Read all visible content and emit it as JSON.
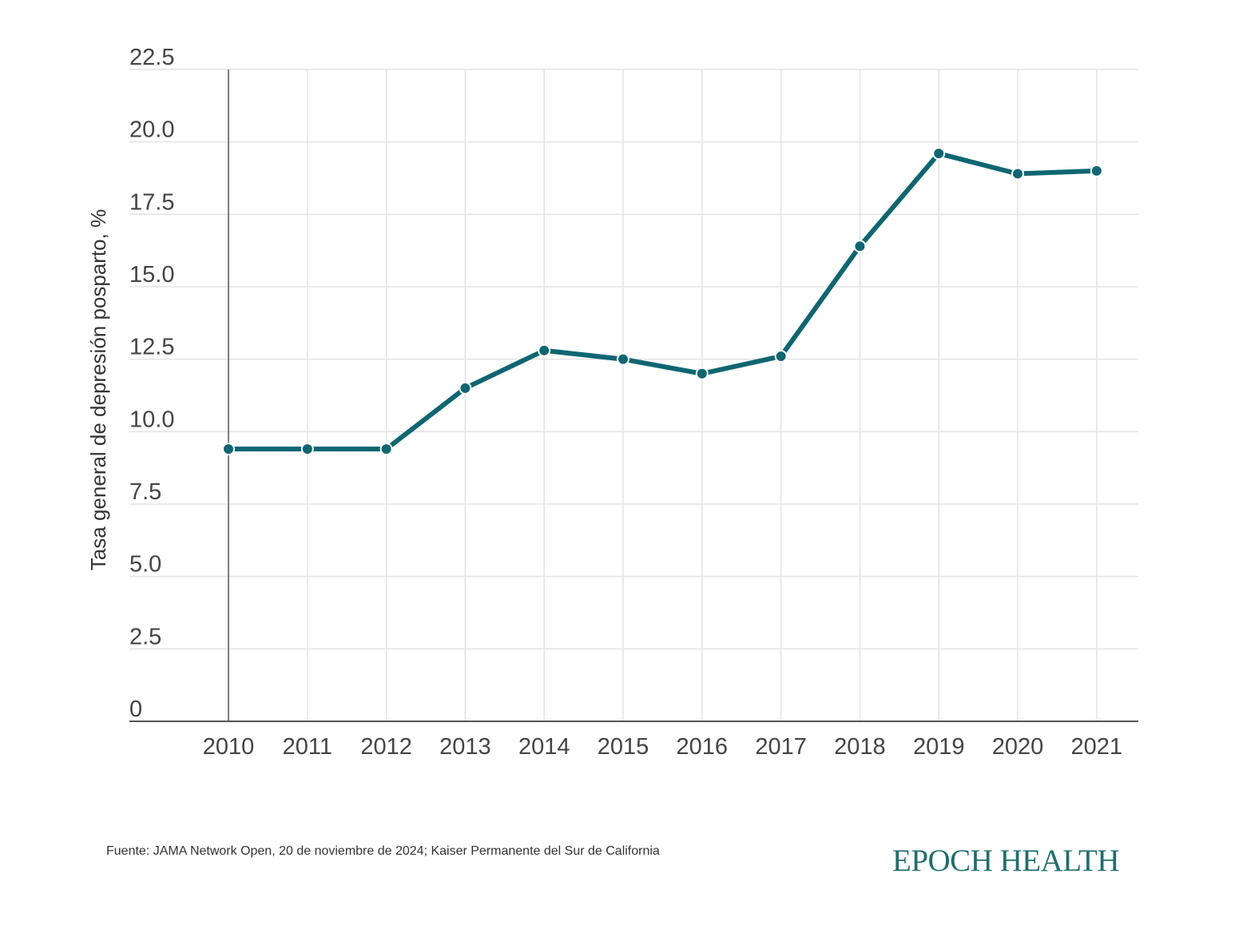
{
  "chart_data": {
    "type": "line",
    "x": [
      "2010",
      "2011",
      "2012",
      "2013",
      "2014",
      "2015",
      "2016",
      "2017",
      "2018",
      "2019",
      "2020",
      "2021"
    ],
    "series": [
      {
        "values": [
          9.4,
          9.4,
          9.4,
          11.5,
          12.8,
          12.5,
          12.0,
          12.6,
          16.4,
          19.6,
          18.9,
          19.0
        ]
      }
    ],
    "ylabel": "Tasa general de depresión posparto, %",
    "xlabel": "",
    "ylim": [
      0,
      22.5
    ],
    "yticks": [
      "0",
      "2.5",
      "5.0",
      "7.5",
      "10.0",
      "12.5",
      "15.0",
      "17.5",
      "20.0",
      "22.5"
    ],
    "grid": true
  },
  "footer": {
    "source": "Fuente: JAMA Network Open, 20 de noviembre de 2024; Kaiser Permanente del Sur de California",
    "brand": "EPOCH HEALTH"
  },
  "colors": {
    "line": "#0e6672",
    "grid": "#e3e3e3",
    "axis": "#555555",
    "brand": "#1f6e70"
  }
}
